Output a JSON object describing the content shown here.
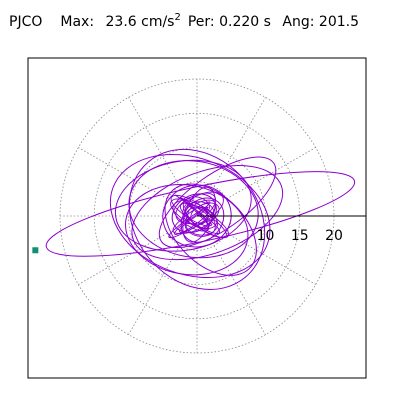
{
  "header": {
    "station": "PJCO",
    "max_label": "Max:",
    "max_value": "23.6",
    "max_unit": "cm/s",
    "max_unit_power": "2",
    "per_label": "Per:",
    "per_value": "0.220 s",
    "ang_label": "Ang:",
    "ang_value": "201.5"
  },
  "chart_data": {
    "type": "scatter",
    "description_free": true,
    "radial_axis": {
      "ticks": [
        10,
        15,
        20
      ],
      "tick_labels": [
        "10",
        "15",
        "20"
      ],
      "grid_rings": [
        5,
        10,
        15,
        20
      ],
      "grid_spokes_deg": [
        0,
        30,
        60,
        90,
        120,
        150,
        180,
        210,
        240,
        270,
        300,
        330
      ],
      "grid": true
    },
    "max_amplitude": 23.6,
    "max_angle_deg": 201.5,
    "trace_color": "#8b00d0",
    "endpoint_color": "#109070",
    "endpoint": {
      "x": -23.6,
      "y": -5.0
    },
    "loops": [
      {
        "cx": 0.5,
        "cy": 0.3,
        "rx": 23.0,
        "ry": 4.0,
        "rot": 12
      },
      {
        "cx": -1.0,
        "cy": 0.0,
        "rx": 12.0,
        "ry": 8.5,
        "rot": 160
      },
      {
        "cx": 0.0,
        "cy": -0.5,
        "rx": 9.0,
        "ry": 11.0,
        "rot": 40
      },
      {
        "cx": 1.5,
        "cy": 0.5,
        "rx": 11.5,
        "ry": 6.0,
        "rot": 20
      },
      {
        "cx": -0.5,
        "cy": 1.0,
        "rx": 7.0,
        "ry": 9.5,
        "rot": 80
      },
      {
        "cx": 0.0,
        "cy": 0.0,
        "rx": 5.0,
        "ry": 4.5,
        "rot": 10
      },
      {
        "cx": 0.8,
        "cy": -0.6,
        "rx": 3.5,
        "ry": 2.8,
        "rot": 50
      },
      {
        "cx": -0.4,
        "cy": 0.4,
        "rx": 2.6,
        "ry": 3.4,
        "rot": 120
      },
      {
        "cx": 2.0,
        "cy": -2.0,
        "rx": 8.0,
        "ry": 5.0,
        "rot": 135
      },
      {
        "cx": -2.0,
        "cy": 1.5,
        "rx": 6.5,
        "ry": 10.0,
        "rot": 100
      },
      {
        "cx": 3.0,
        "cy": 2.0,
        "rx": 10.0,
        "ry": 4.0,
        "rot": 35
      },
      {
        "cx": -1.5,
        "cy": -2.0,
        "rx": 9.0,
        "ry": 6.5,
        "rot": 170
      },
      {
        "cx": 0.0,
        "cy": 0.0,
        "rx": 1.6,
        "ry": 1.3,
        "rot": 0
      },
      {
        "cx": 0.3,
        "cy": 0.2,
        "rx": 4.2,
        "ry": 2.0,
        "rot": 70
      }
    ]
  }
}
